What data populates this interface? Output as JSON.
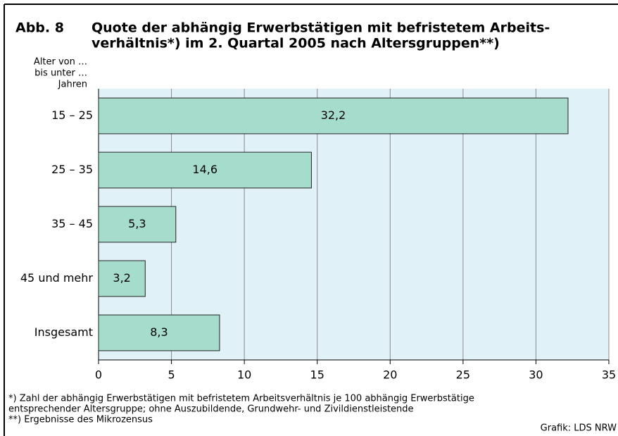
{
  "chart_data": {
    "type": "bar",
    "figure_label": "Abb. 8",
    "title_lines": [
      "Quote der abhängig Erwerbstätigen mit befristetem Arbeits-",
      "verhältnis*) im 2. Quartal 2005 nach Altersgruppen**)"
    ],
    "y_label_lines": [
      "Alter von …",
      "bis unter …",
      "Jahren"
    ],
    "categories": [
      "15 – 25",
      "25 – 35",
      "35 – 45",
      "45 und mehr",
      "Insgesamt"
    ],
    "values": [
      32.2,
      14.6,
      5.3,
      3.2,
      8.3
    ],
    "value_labels": [
      "32,2",
      "14,6",
      "5,3",
      "3,2",
      "8,3"
    ],
    "color": "#a5dccb",
    "xlim": [
      0,
      35
    ],
    "xticks": [
      0,
      5,
      10,
      15,
      20,
      25,
      30,
      35
    ],
    "grid": true,
    "footnotes": [
      "*) Zahl der abhängig Erwerbstätigen mit befristetem Arbeitsverhältnis je 100 abhängig Erwerbstätige",
      "entsprechender Altersgruppe; ohne Auszubildende, Grundwehr- und Zivildienstleistende",
      "**) Ergebnisse des Mikrozensus"
    ],
    "source": "Grafik: LDS NRW"
  }
}
